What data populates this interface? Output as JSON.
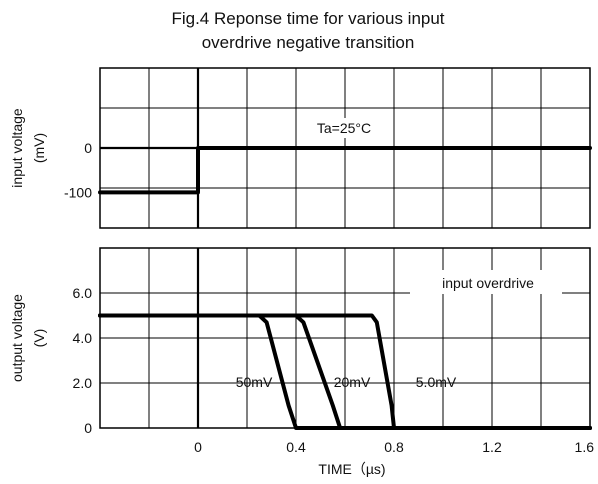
{
  "title_line1": "Fig.4 Reponse time for various input",
  "title_line2": "overdrive negative transition",
  "chart_data": [
    {
      "type": "line",
      "panel": "input",
      "ylabel_line1": "input voltage",
      "ylabel_line2": "(mV)",
      "xlim": [
        -0.4,
        1.6
      ],
      "ylim": [
        -180,
        180
      ],
      "yticks": [
        {
          "value": 0,
          "label": "0"
        },
        {
          "value": -100,
          "label": "-100"
        }
      ],
      "annotation": "Ta=25°C",
      "series": [
        {
          "x": [
            -0.4,
            0.0,
            0.0,
            1.6
          ],
          "y": [
            -100,
            -100,
            0,
            0
          ]
        }
      ]
    },
    {
      "type": "line",
      "panel": "output",
      "ylabel_line1": "output voltage",
      "ylabel_line2": "(V)",
      "xlabel": "TIME（µs)",
      "xlim": [
        -0.4,
        1.6
      ],
      "ylim": [
        0,
        8
      ],
      "yticks": [
        {
          "value": 6.0,
          "label": "6.0"
        },
        {
          "value": 4.0,
          "label": "4.0"
        },
        {
          "value": 2.0,
          "label": "2.0"
        },
        {
          "value": 0,
          "label": "0"
        }
      ],
      "xticks": [
        {
          "value": 0,
          "label": "0"
        },
        {
          "value": 0.4,
          "label": "0.4"
        },
        {
          "value": 0.8,
          "label": "0.8"
        },
        {
          "value": 1.2,
          "label": "1.2"
        },
        {
          "value": 1.6,
          "label": "1.6"
        }
      ],
      "legend_title": "input overdrive",
      "series": [
        {
          "name": "50mV",
          "x": [
            -0.4,
            0.25,
            0.28,
            0.37,
            0.4,
            1.6
          ],
          "y": [
            5.0,
            5.0,
            4.7,
            1.0,
            0.0,
            0.0
          ]
        },
        {
          "name": "20mV",
          "x": [
            -0.4,
            0.4,
            0.43,
            0.55,
            0.58,
            1.6
          ],
          "y": [
            5.0,
            5.0,
            4.7,
            1.0,
            0.0,
            0.0
          ]
        },
        {
          "name": "5.0mV",
          "x": [
            -0.4,
            0.71,
            0.73,
            0.79,
            0.8,
            1.6
          ],
          "y": [
            5.0,
            5.0,
            4.7,
            1.0,
            0.0,
            0.0
          ]
        }
      ]
    }
  ]
}
